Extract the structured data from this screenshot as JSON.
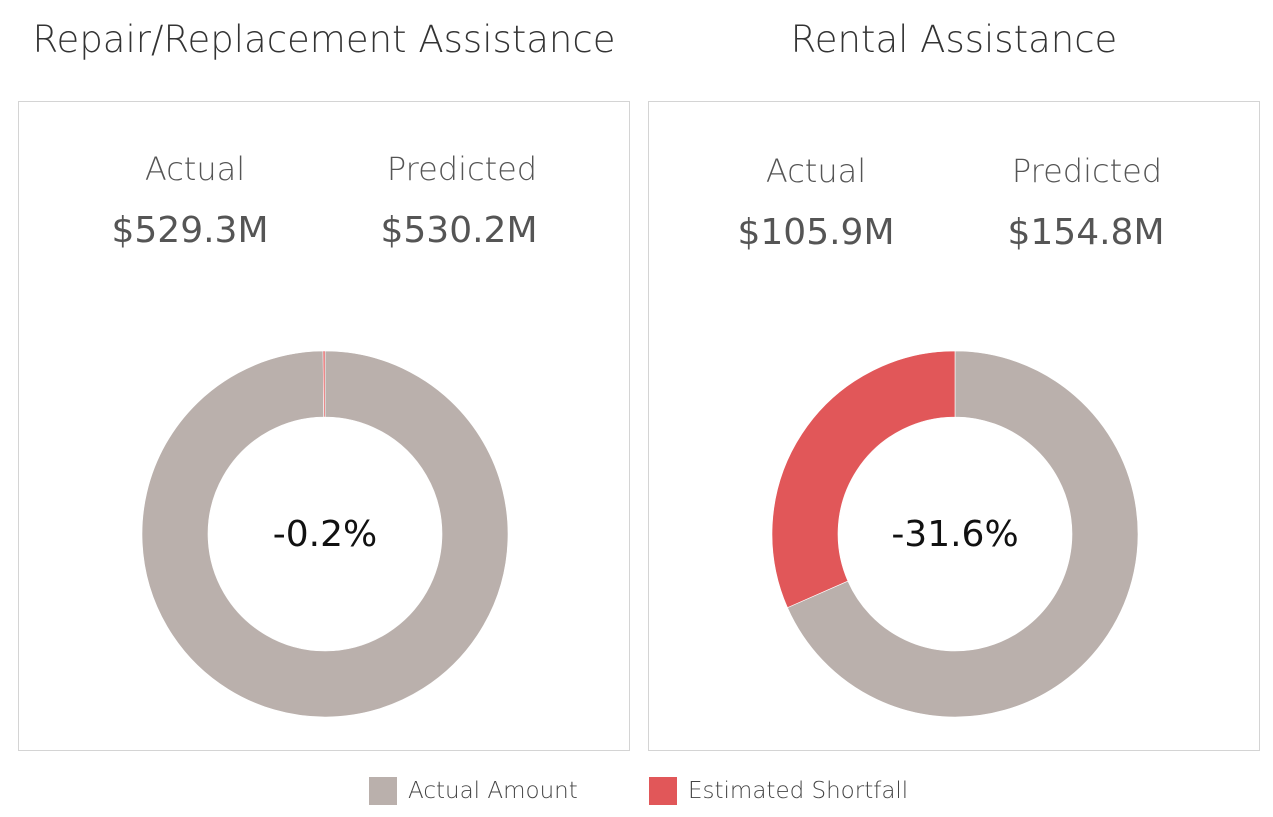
{
  "colors": {
    "actual": "#bab0ac",
    "shortfall": "#e15759"
  },
  "panels": [
    {
      "title": "Repair/Replacement Assistance",
      "actual_label": "Actual",
      "predicted_label": "Predicted",
      "actual_value": "$529.3M",
      "predicted_value": "$530.2M",
      "center_label": "-0.2%"
    },
    {
      "title": "Rental Assistance",
      "actual_label": "Actual",
      "predicted_label": "Predicted",
      "actual_value": "$105.9M",
      "predicted_value": "$154.8M",
      "center_label": "-31.6%"
    }
  ],
  "legend": [
    {
      "label": "Actual Amount",
      "color": "#bab0ac"
    },
    {
      "label": "Estimated Shortfall",
      "color": "#e15759"
    }
  ],
  "chart_data": [
    {
      "type": "pie",
      "title": "Repair/Replacement Assistance",
      "categories": [
        "Actual Amount",
        "Estimated Shortfall"
      ],
      "values": [
        529.3,
        0.9
      ],
      "center_label": "-0.2%"
    },
    {
      "type": "pie",
      "title": "Rental Assistance",
      "categories": [
        "Actual Amount",
        "Estimated Shortfall"
      ],
      "values": [
        105.9,
        48.9
      ],
      "center_label": "-31.6%"
    }
  ]
}
